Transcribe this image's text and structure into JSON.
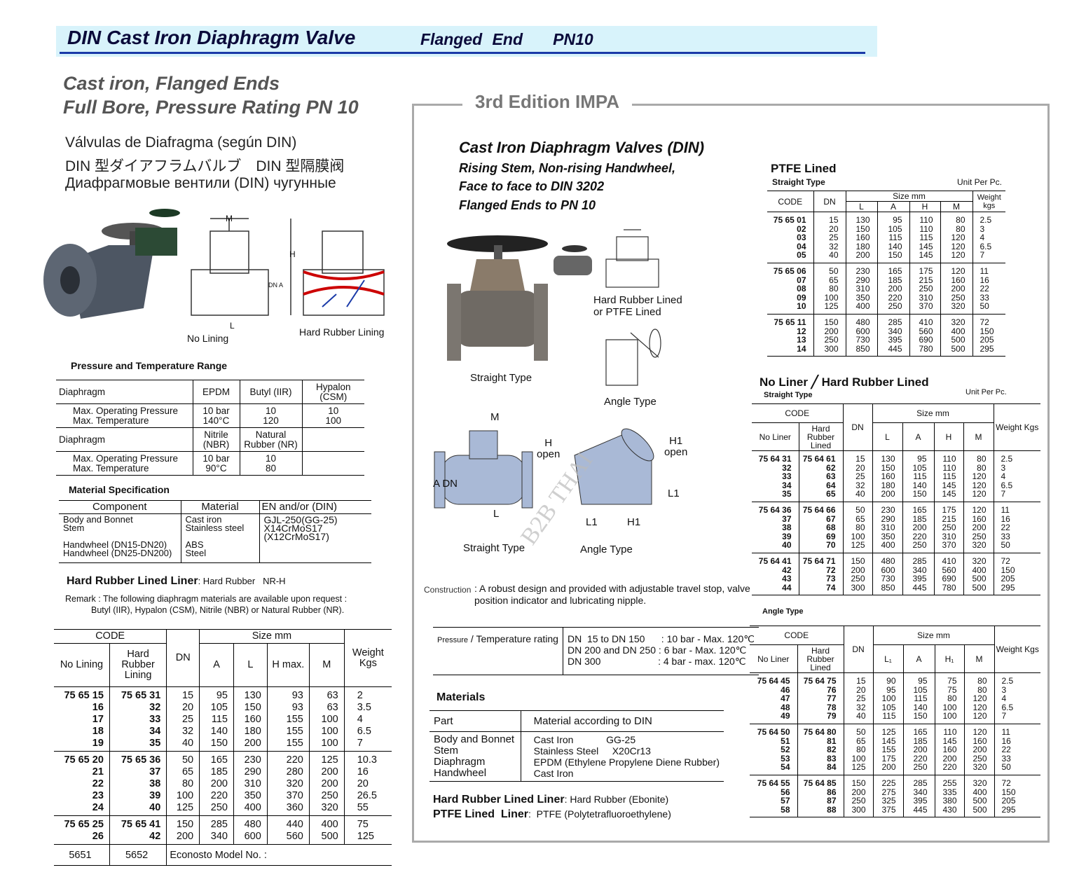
{
  "banner": {
    "title": "DIN Cast Iron Diaphragm Valve",
    "subtitle": "Flanged End   PN10",
    "background": "#d8f3fb",
    "accent": "#1a3aa8"
  },
  "left": {
    "subtitle1": "Cast iron, Flanged Ends",
    "subtitle2": "Full Bore, Pressure Rating PN 10",
    "lang_es": "Válvulas de Diafragma (según DIN)",
    "lang_jp": "DIN 型ダイアフラムバルブ　DIN 型隔膜阀",
    "lang_ru": "Диафрагмовые вентили (DIN) чугунные",
    "figure": {
      "no_lining": "No Lining",
      "hard_rubber_lining": "Hard Rubber Lining",
      "m": "M",
      "h": "H",
      "l": "L",
      "dn_a": "DN A"
    },
    "pressure": {
      "title": "Pressure and Temperature Range",
      "rows": [
        [
          "Diaphragm",
          "EPDM",
          "Butyl (IIR)",
          "Hypalon (CSM)"
        ],
        [
          "Max. Operating Pressure\nMax. Temperature",
          "10 bar\n140°C",
          "10\n120",
          "10\n100"
        ],
        [
          "Diaphragm",
          "Nitrile (NBR)",
          "Natural Rubber (NR)",
          ""
        ],
        [
          "Max. Operating Pressure\nMax. Temperature",
          "10 bar\n90°C",
          "10\n80",
          ""
        ]
      ]
    },
    "material_spec": {
      "title": "Material Specification",
      "headers": [
        "Component",
        "Material",
        "EN and/or (DIN)"
      ],
      "component": "Body and Bonnet\nStem\n\nHandwheel (DN15-DN20)\nHandwheel (DN25-DN200)",
      "material": "Cast iron\nStainless steel\n\nABS\nSteel",
      "en_din": "GJL-250(GG-25)\nX14CrMoS17\n(X12CrMoS17)"
    },
    "liner_label": "Hard Rubber Lined Liner",
    "liner_value": ": Hard Rubber   NR-H",
    "remark1": "Remark : The following diaphragm materials are available upon request :",
    "remark2": "Butyl (IIR), Hypalon (CSM), Nitrile (NBR) or Natural Rubber (NR).",
    "table": {
      "code": "CODE",
      "no_lining": "No Lining",
      "hard_rubber": "Hard Rubber Lining",
      "dn": "DN",
      "size": "Size mm",
      "cols": [
        "A",
        "L",
        "H max.",
        "M"
      ],
      "weight": "Weight Kgs",
      "groups": [
        {
          "rows": [
            [
              "75 65 15",
              "75 65 31",
              "15",
              "95",
              "130",
              "93",
              "63",
              "2"
            ],
            [
              "16",
              "32",
              "20",
              "105",
              "150",
              "93",
              "63",
              "3.5"
            ],
            [
              "17",
              "33",
              "25",
              "115",
              "160",
              "155",
              "100",
              "4"
            ],
            [
              "18",
              "34",
              "32",
              "140",
              "180",
              "155",
              "100",
              "6.5"
            ],
            [
              "19",
              "35",
              "40",
              "150",
              "200",
              "155",
              "100",
              "7"
            ]
          ]
        },
        {
          "rows": [
            [
              "75 65 20",
              "75 65 36",
              "50",
              "165",
              "230",
              "220",
              "125",
              "10.3"
            ],
            [
              "21",
              "37",
              "65",
              "185",
              "290",
              "280",
              "200",
              "16"
            ],
            [
              "22",
              "38",
              "80",
              "200",
              "310",
              "320",
              "200",
              "20"
            ],
            [
              "23",
              "39",
              "100",
              "220",
              "350",
              "370",
              "250",
              "26.5"
            ],
            [
              "24",
              "40",
              "125",
              "250",
              "400",
              "360",
              "320",
              "55"
            ]
          ]
        },
        {
          "rows": [
            [
              "75 65 25",
              "75 65 41",
              "150",
              "285",
              "480",
              "440",
              "400",
              "75"
            ],
            [
              "26",
              "42",
              "200",
              "340",
              "600",
              "560",
              "500",
              "125"
            ]
          ]
        }
      ],
      "footer": {
        "model1": "5651",
        "model2": "5652",
        "label": "Econosto Model No. :"
      }
    }
  },
  "impa": {
    "edition": "3rd Edition IMPA",
    "title": "Cast Iron Diaphragm Valves (DIN)",
    "line1": "Rising Stem, Non-rising Handwheel,",
    "line2": "Face to face to DIN 3202",
    "line3": "Flanged Ends to PN 10",
    "figure": {
      "straight": "Straight Type",
      "lined": "Hard Rubber Lined\nor PTFE Lined",
      "angle": "Angle Type",
      "m": "M",
      "h_open": "H\nopen",
      "h1_open": "H1\nopen",
      "a_dn": "A DN",
      "l": "L",
      "l1": "L1",
      "h1": "H1",
      "straight2": "Straight Type",
      "angle2": "Angle Type",
      "watermark": "B2B THAI"
    },
    "construction_label": "Construction",
    "construction_text": ": A robust design and provided with adjustable travel stop, valve\nposition indicator and lubricating nipple.",
    "pressure_label_small": "Pressure",
    "pressure_label": " / Temperature rating",
    "pressure_lines": [
      "DN  15 to DN 150      : 10 bar - Max. 120℃",
      "DN 200 and DN 250 : 6 bar - Max. 120℃",
      "DN 300                     : 4 bar - max. 120℃"
    ],
    "materials": {
      "title": "Materials",
      "headers": [
        "Part",
        "Material according to DIN"
      ],
      "parts": "Body and Bonnet\nStem\nDiaphragm\nHandwheel",
      "values": [
        "Cast Iron            GG-25",
        "Stainless Steel     X20Cr13",
        "EPDM (Ethylene Propylene Diene Rubber)",
        "Cast Iron"
      ]
    },
    "liner1_label": "Hard Rubber Lined Liner",
    "liner1_value": ": Hard Rubber (Ebonite)",
    "liner2_label": "PTFE Lined  Liner",
    "liner2_value": ":  PTFE (Polytetrafluoroethylene)",
    "ptfe": {
      "title": "PTFE Lined",
      "type": "Straight Type",
      "unit": "Unit Per Pc.",
      "code": "CODE",
      "dn": "DN",
      "size": "Size mm",
      "cols": [
        "L",
        "A",
        "H",
        "M"
      ],
      "weight": "Weight kgs",
      "groups": [
        {
          "rows": [
            [
              "75 65 01",
              "15",
              "130",
              "95",
              "110",
              "80",
              "2.5"
            ],
            [
              "02",
              "20",
              "150",
              "105",
              "110",
              "80",
              "3"
            ],
            [
              "03",
              "25",
              "160",
              "115",
              "115",
              "120",
              "4"
            ],
            [
              "04",
              "32",
              "180",
              "140",
              "145",
              "120",
              "6.5"
            ],
            [
              "05",
              "40",
              "200",
              "150",
              "145",
              "120",
              "7"
            ]
          ]
        },
        {
          "rows": [
            [
              "75 65 06",
              "50",
              "230",
              "165",
              "175",
              "120",
              "11"
            ],
            [
              "07",
              "65",
              "290",
              "185",
              "215",
              "160",
              "16"
            ],
            [
              "08",
              "80",
              "310",
              "200",
              "250",
              "200",
              "22"
            ],
            [
              "09",
              "100",
              "350",
              "220",
              "310",
              "250",
              "33"
            ],
            [
              "10",
              "125",
              "400",
              "250",
              "370",
              "320",
              "50"
            ]
          ]
        },
        {
          "rows": [
            [
              "75 65 11",
              "150",
              "480",
              "285",
              "410",
              "320",
              "72"
            ],
            [
              "12",
              "200",
              "600",
              "340",
              "560",
              "400",
              "150"
            ],
            [
              "13",
              "250",
              "730",
              "395",
              "690",
              "500",
              "205"
            ],
            [
              "14",
              "300",
              "850",
              "445",
              "780",
              "500",
              "295"
            ]
          ]
        }
      ]
    },
    "straight": {
      "title": "No Liner ╱ Hard Rubber Lined",
      "type": "Straight Type",
      "unit": "Unit Per Pc.",
      "code": "CODE",
      "no_liner": "No Liner",
      "hard_rubber": "Hard Rubber Lined",
      "dn": "DN",
      "size": "Size mm",
      "cols": [
        "L",
        "A",
        "H",
        "M"
      ],
      "weight": "Weight Kgs",
      "groups": [
        {
          "rows": [
            [
              "75 64 31",
              "75 64 61",
              "15",
              "130",
              "95",
              "110",
              "80",
              "2.5"
            ],
            [
              "32",
              "62",
              "20",
              "150",
              "105",
              "110",
              "80",
              "3"
            ],
            [
              "33",
              "63",
              "25",
              "160",
              "115",
              "115",
              "120",
              "4"
            ],
            [
              "34",
              "64",
              "32",
              "180",
              "140",
              "145",
              "120",
              "6.5"
            ],
            [
              "35",
              "65",
              "40",
              "200",
              "150",
              "145",
              "120",
              "7"
            ]
          ]
        },
        {
          "rows": [
            [
              "75 64 36",
              "75 64 66",
              "50",
              "230",
              "165",
              "175",
              "120",
              "11"
            ],
            [
              "37",
              "67",
              "65",
              "290",
              "185",
              "215",
              "160",
              "16"
            ],
            [
              "38",
              "68",
              "80",
              "310",
              "200",
              "250",
              "200",
              "22"
            ],
            [
              "39",
              "69",
              "100",
              "350",
              "220",
              "310",
              "250",
              "33"
            ],
            [
              "40",
              "70",
              "125",
              "400",
              "250",
              "370",
              "320",
              "50"
            ]
          ]
        },
        {
          "rows": [
            [
              "75 64 41",
              "75 64 71",
              "150",
              "480",
              "285",
              "410",
              "320",
              "72"
            ],
            [
              "42",
              "72",
              "200",
              "600",
              "340",
              "560",
              "400",
              "150"
            ],
            [
              "43",
              "73",
              "250",
              "730",
              "395",
              "690",
              "500",
              "205"
            ],
            [
              "44",
              "74",
              "300",
              "850",
              "445",
              "780",
              "500",
              "295"
            ]
          ]
        }
      ]
    },
    "angle": {
      "type": "Angle Type",
      "code": "CODE",
      "no_liner": "No Liner",
      "hard_rubber": "Hard Rubber Lined",
      "dn": "DN",
      "size": "Size mm",
      "cols": [
        "L₁",
        "A",
        "H₁",
        "M"
      ],
      "weight": "Weight Kgs",
      "groups": [
        {
          "rows": [
            [
              "75 64 45",
              "75 64 75",
              "15",
              "90",
              "95",
              "75",
              "80",
              "2.5"
            ],
            [
              "46",
              "76",
              "20",
              "95",
              "105",
              "75",
              "80",
              "3"
            ],
            [
              "47",
              "77",
              "25",
              "100",
              "115",
              "80",
              "120",
              "4"
            ],
            [
              "48",
              "78",
              "32",
              "105",
              "140",
              "100",
              "120",
              "6.5"
            ],
            [
              "49",
              "79",
              "40",
              "115",
              "150",
              "100",
              "120",
              "7"
            ]
          ]
        },
        {
          "rows": [
            [
              "75 64 50",
              "75 64 80",
              "50",
              "125",
              "165",
              "110",
              "120",
              "11"
            ],
            [
              "51",
              "81",
              "65",
              "145",
              "185",
              "145",
              "160",
              "16"
            ],
            [
              "52",
              "82",
              "80",
              "155",
              "200",
              "160",
              "200",
              "22"
            ],
            [
              "53",
              "83",
              "100",
              "175",
              "220",
              "200",
              "250",
              "33"
            ],
            [
              "54",
              "84",
              "125",
              "200",
              "250",
              "220",
              "320",
              "50"
            ]
          ]
        },
        {
          "rows": [
            [
              "75 64 55",
              "75 64 85",
              "150",
              "225",
              "285",
              "255",
              "320",
              "72"
            ],
            [
              "56",
              "86",
              "200",
              "275",
              "340",
              "335",
              "400",
              "150"
            ],
            [
              "57",
              "87",
              "250",
              "325",
              "395",
              "380",
              "500",
              "205"
            ],
            [
              "58",
              "88",
              "300",
              "375",
              "445",
              "430",
              "500",
              "295"
            ]
          ]
        }
      ]
    }
  }
}
